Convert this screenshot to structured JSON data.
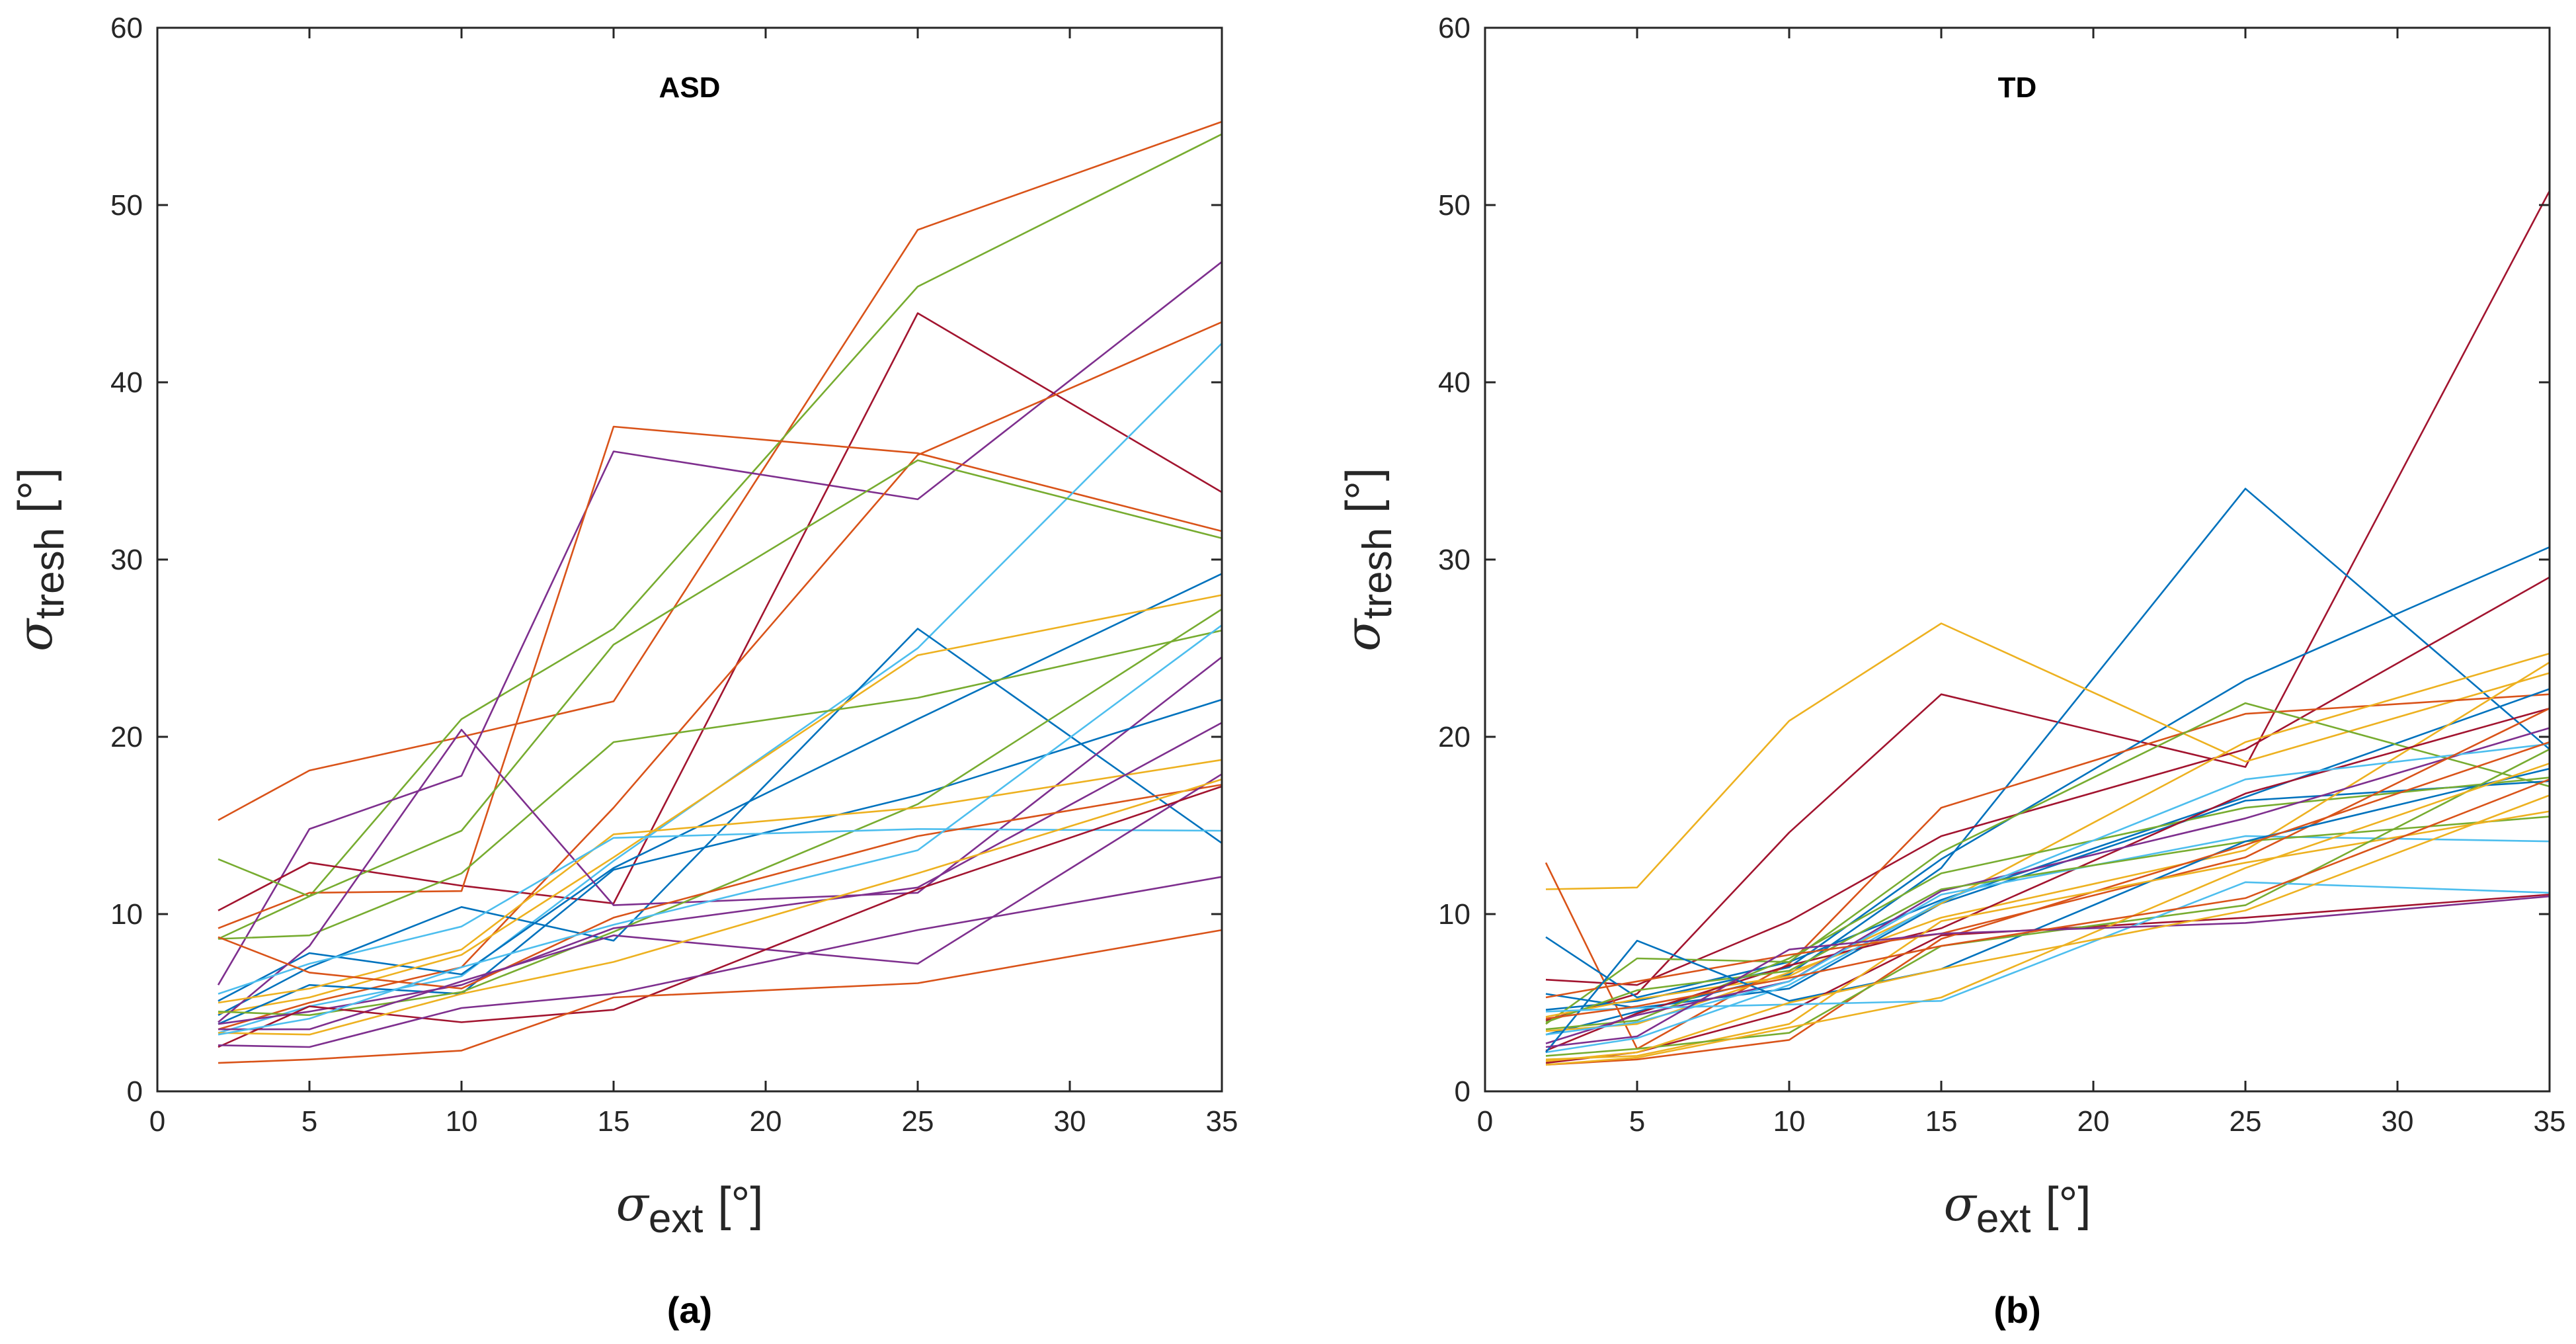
{
  "chart_data": [
    {
      "type": "line",
      "panel": "a",
      "title": "ASD",
      "caption": "(a)",
      "xlabel": {
        "symbol": "σ",
        "sub": "ext",
        "unit": "[°]"
      },
      "ylabel": {
        "symbol": "σ",
        "sub": "tresh",
        "unit": "[°]"
      },
      "xlim": [
        0,
        35
      ],
      "ylim": [
        0,
        60
      ],
      "xticks": [
        0,
        5,
        10,
        15,
        20,
        25,
        30,
        35
      ],
      "yticks": [
        0,
        10,
        20,
        30,
        40,
        50,
        60
      ],
      "x": [
        2,
        5,
        10,
        15,
        25,
        35
      ],
      "series": [
        {
          "color": "#D95319",
          "values": [
            15.3,
            18.1,
            20,
            22,
            48.6,
            54.7
          ]
        },
        {
          "color": "#77AC30",
          "values": [
            8.6,
            11,
            21,
            26.1,
            45.4,
            54
          ]
        },
        {
          "color": "#7E2F8E",
          "values": [
            6,
            14.8,
            17.8,
            36.1,
            33.4,
            46.8
          ]
        },
        {
          "color": "#A2142F",
          "values": [
            10.2,
            12.9,
            11.6,
            10.6,
            43.9,
            33.8
          ]
        },
        {
          "color": "#D95319",
          "values": [
            9.2,
            11.2,
            11.3,
            37.5,
            36,
            31.6
          ]
        },
        {
          "color": "#D95319",
          "values": [
            3.5,
            5,
            7,
            16,
            35.9,
            43.4
          ]
        },
        {
          "color": "#4DBEEE",
          "values": [
            3.3,
            4.8,
            6.5,
            13,
            25,
            42.2
          ]
        },
        {
          "color": "#77AC30",
          "values": [
            13.1,
            11,
            14.7,
            25.2,
            35.6,
            31.2
          ]
        },
        {
          "color": "#0072BD",
          "values": [
            4.3,
            7,
            10.4,
            8.5,
            26.1,
            14
          ]
        },
        {
          "color": "#0072BD",
          "values": [
            5.1,
            7.8,
            6.6,
            12.6,
            21,
            29.2
          ]
        },
        {
          "color": "#EDB120",
          "values": [
            4.4,
            5.3,
            7.7,
            13.2,
            24.6,
            28
          ]
        },
        {
          "color": "#77AC30",
          "values": [
            8.6,
            8.8,
            12.3,
            19.7,
            22.2,
            26
          ]
        },
        {
          "color": "#7E2F8E",
          "values": [
            3.9,
            8.2,
            20.4,
            10.5,
            11.2,
            24.5
          ]
        },
        {
          "color": "#0072BD",
          "values": [
            3.8,
            6,
            5.5,
            12.5,
            16.7,
            22.1
          ]
        },
        {
          "color": "#77AC30",
          "values": [
            4.5,
            4.3,
            5.6,
            9,
            16.2,
            27.2
          ]
        },
        {
          "color": "#EDB120",
          "values": [
            5,
            5.8,
            8,
            14.5,
            16,
            18.7
          ]
        },
        {
          "color": "#4DBEEE",
          "values": [
            5.5,
            7.2,
            9.3,
            14.3,
            14.8,
            14.7
          ]
        },
        {
          "color": "#7E2F8E",
          "values": [
            3.8,
            4.5,
            6,
            9.2,
            11.5,
            20.8
          ]
        },
        {
          "color": "#D95319",
          "values": [
            8.7,
            6.7,
            5.8,
            9.8,
            14.4,
            17.3
          ]
        },
        {
          "color": "#7E2F8E",
          "values": [
            3.5,
            3.5,
            6.2,
            8.8,
            7.2,
            17.9
          ]
        },
        {
          "color": "#A2142F",
          "values": [
            2.5,
            4.8,
            3.9,
            4.6,
            11.4,
            17.2
          ]
        },
        {
          "color": "#7E2F8E",
          "values": [
            2.6,
            2.5,
            4.7,
            5.5,
            9.1,
            12.1
          ]
        },
        {
          "color": "#D95319",
          "values": [
            1.6,
            1.8,
            2.3,
            5.3,
            6.1,
            9.1
          ]
        },
        {
          "color": "#EDB120",
          "values": [
            3.3,
            3.2,
            5.5,
            7.3,
            12.3,
            17.6
          ]
        },
        {
          "color": "#4DBEEE",
          "values": [
            3.2,
            4.1,
            7,
            9.4,
            13.6,
            26.3
          ]
        }
      ]
    },
    {
      "type": "line",
      "panel": "b",
      "title": "TD",
      "caption": "(b)",
      "xlabel": {
        "symbol": "σ",
        "sub": "ext",
        "unit": "[°]"
      },
      "ylabel": {
        "symbol": "σ",
        "sub": "tresh",
        "unit": "[°]"
      },
      "xlim": [
        0,
        35
      ],
      "ylim": [
        0,
        60
      ],
      "xticks": [
        0,
        5,
        10,
        15,
        20,
        25,
        30,
        35
      ],
      "yticks": [
        0,
        10,
        20,
        30,
        40,
        50,
        60
      ],
      "x": [
        2,
        5,
        10,
        15,
        25,
        35
      ],
      "series": [
        {
          "color": "#A2142F",
          "values": [
            4,
            5.5,
            14.6,
            22.4,
            18.3,
            50.8
          ]
        },
        {
          "color": "#0072BD",
          "values": [
            3.2,
            4.5,
            6.6,
            12.6,
            34,
            19.3
          ]
        },
        {
          "color": "#0072BD",
          "values": [
            4.6,
            5.1,
            7,
            13.1,
            23.2,
            30.7
          ]
        },
        {
          "color": "#EDB120",
          "values": [
            11.4,
            11.5,
            20.9,
            26.4,
            18.6,
            23.6
          ]
        },
        {
          "color": "#A2142F",
          "values": [
            6.3,
            6,
            9.6,
            14.4,
            19.3,
            29
          ]
        },
        {
          "color": "#D95319",
          "values": [
            12.9,
            2.4,
            7.2,
            16,
            21.3,
            22.4
          ]
        },
        {
          "color": "#0072BD",
          "values": [
            8.7,
            5.3,
            7.3,
            10.8,
            16.6,
            22.7
          ]
        },
        {
          "color": "#77AC30",
          "values": [
            3.8,
            7.5,
            7.3,
            13.5,
            21.9,
            17.2
          ]
        },
        {
          "color": "#0072BD",
          "values": [
            5.5,
            4.7,
            5.8,
            10.6,
            16.4,
            17.5
          ]
        },
        {
          "color": "#EDB120",
          "values": [
            4.2,
            5.2,
            6.5,
            10.6,
            19.7,
            24.7
          ]
        },
        {
          "color": "#77AC30",
          "values": [
            3.5,
            4,
            7.5,
            12.3,
            16,
            17.7
          ]
        },
        {
          "color": "#EDB120",
          "values": [
            3.4,
            3.8,
            6.7,
            9.8,
            13.6,
            24.2
          ]
        },
        {
          "color": "#A2142F",
          "values": [
            2.3,
            4.4,
            7.1,
            9.2,
            16.8,
            21.6
          ]
        },
        {
          "color": "#7E2F8E",
          "values": [
            2.7,
            4.3,
            6.2,
            11.3,
            15.4,
            20.5
          ]
        },
        {
          "color": "#4DBEEE",
          "values": [
            3.2,
            3.9,
            6.2,
            11.1,
            14.4,
            14.1
          ]
        },
        {
          "color": "#4DBEEE",
          "values": [
            2.2,
            3,
            6,
            10.7,
            17.6,
            19.6
          ]
        },
        {
          "color": "#77AC30",
          "values": [
            3.9,
            5.7,
            6.8,
            11.4,
            14.1,
            15.5
          ]
        },
        {
          "color": "#D95319",
          "values": [
            5.3,
            6.2,
            7.7,
            8.9,
            13.2,
            21.6
          ]
        },
        {
          "color": "#0072BD",
          "values": [
            2.2,
            8.5,
            5.1,
            6.9,
            14.1,
            18.2
          ]
        },
        {
          "color": "#A2142F",
          "values": [
            1.6,
            2.2,
            4.5,
            8.8,
            9.8,
            11.1
          ]
        },
        {
          "color": "#D95319",
          "values": [
            1.5,
            1.8,
            2.9,
            8.6,
            13.9,
            19.7
          ]
        },
        {
          "color": "#EDB120",
          "values": [
            1.8,
            2,
            3.8,
            9.6,
            12.9,
            15.8
          ]
        },
        {
          "color": "#77AC30",
          "values": [
            2,
            2.4,
            3.3,
            8.2,
            10.5,
            19.3
          ]
        },
        {
          "color": "#EDB120",
          "values": [
            1.5,
            1.9,
            3.6,
            5.3,
            12.6,
            18.5
          ]
        },
        {
          "color": "#4DBEEE",
          "values": [
            4.5,
            4.7,
            4.9,
            5.1,
            11.8,
            11.2
          ]
        },
        {
          "color": "#7E2F8E",
          "values": [
            2.5,
            3.1,
            8,
            8.9,
            9.5,
            11
          ]
        },
        {
          "color": "#EDB120",
          "values": [
            1.7,
            2.2,
            5,
            6.9,
            10.2,
            16.7
          ]
        },
        {
          "color": "#D95319",
          "values": [
            4.1,
            4.8,
            6.4,
            8.2,
            10.9,
            17.6
          ]
        }
      ]
    }
  ]
}
